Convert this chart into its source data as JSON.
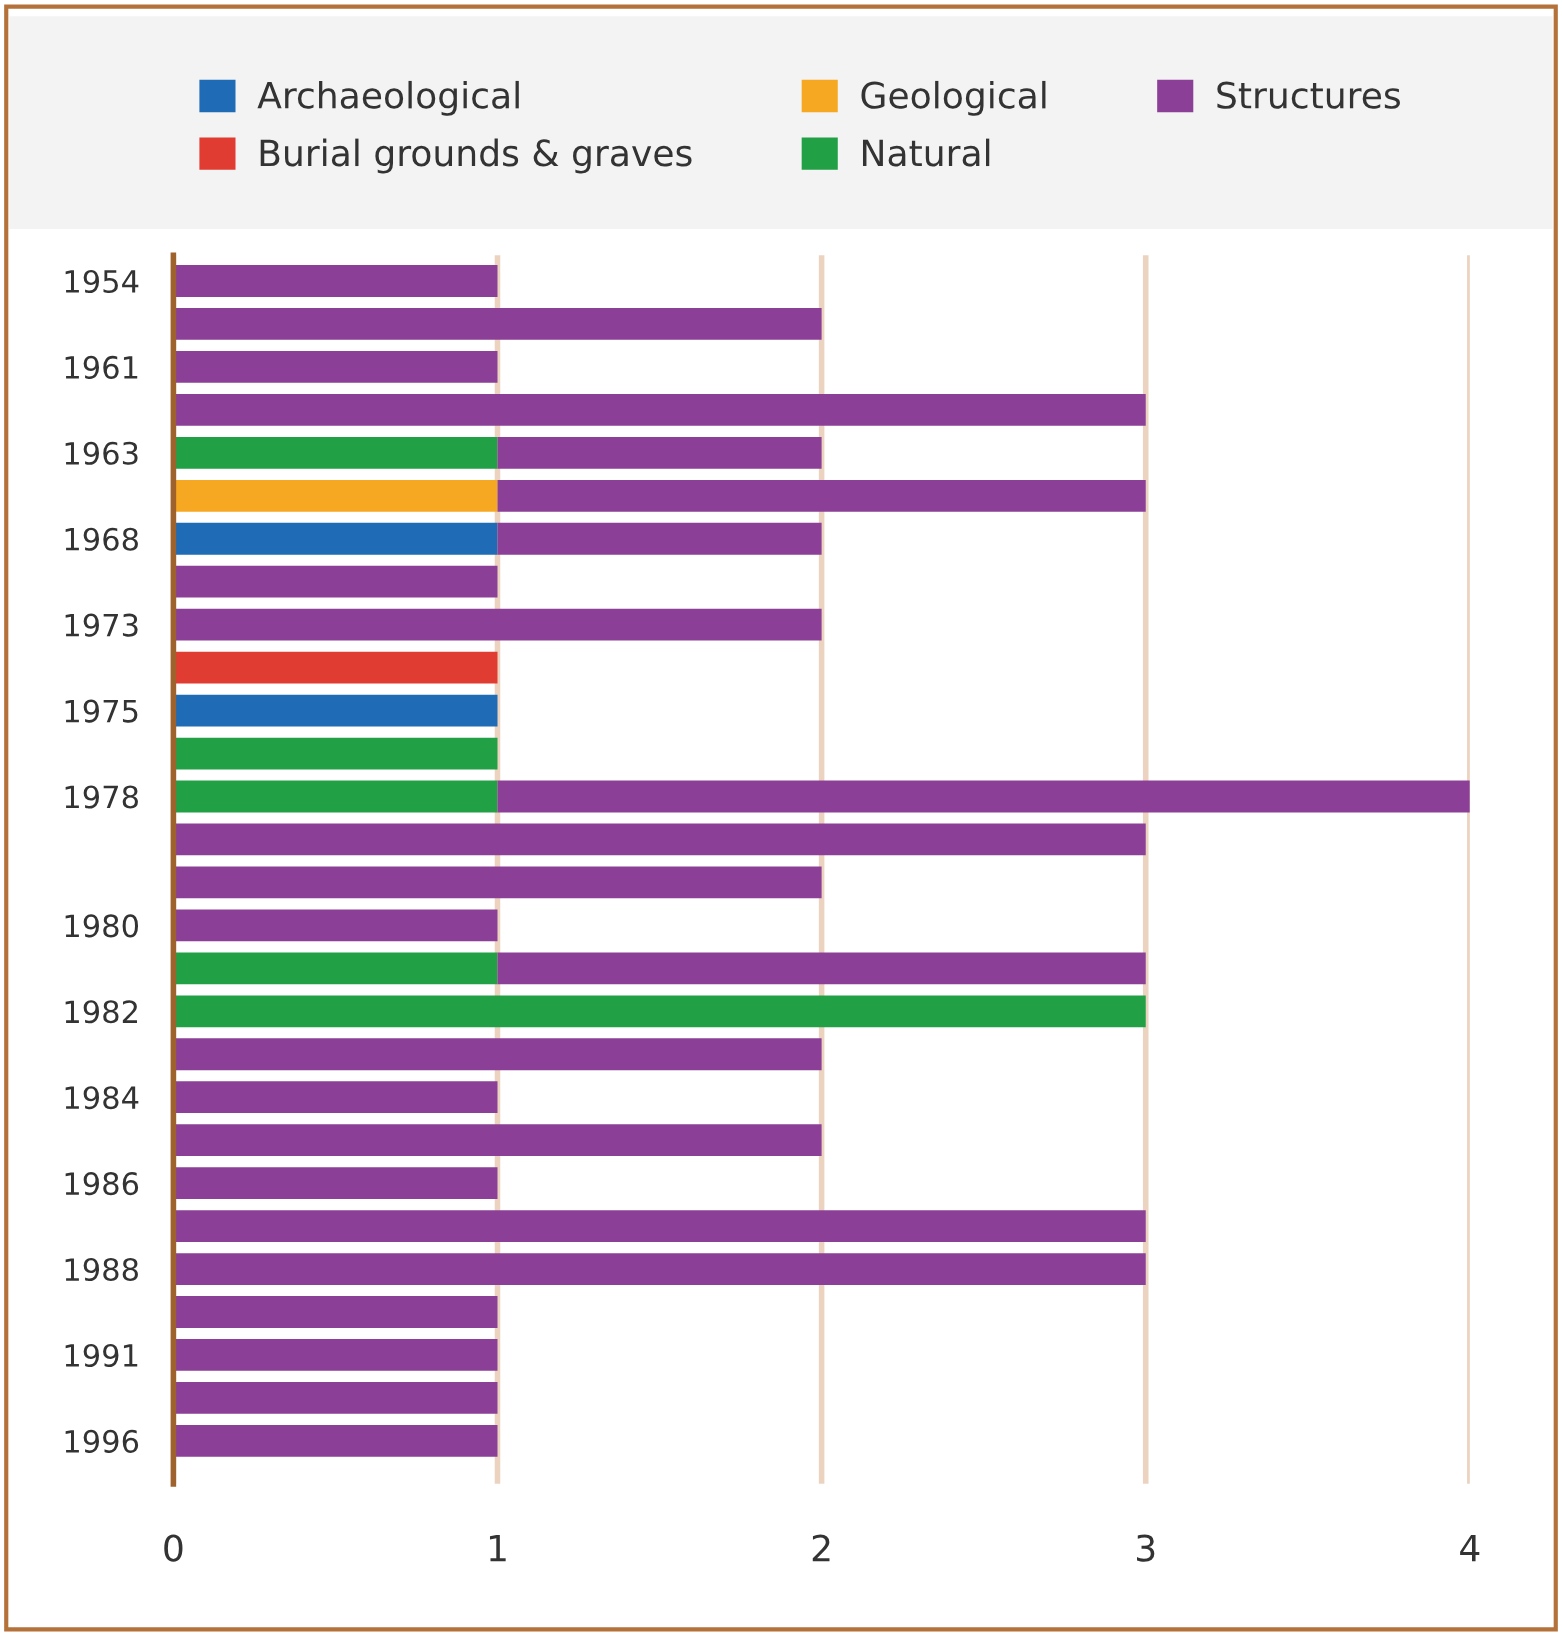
{
  "chart_data": {
    "type": "bar",
    "orientation": "horizontal",
    "stacked": true,
    "categories": [
      "1954",
      null,
      "1961",
      null,
      "1963",
      null,
      "1968",
      null,
      "1973",
      null,
      "1975",
      null,
      "1978",
      null,
      null,
      "1980",
      null,
      "1982",
      null,
      "1984",
      null,
      "1986",
      null,
      "1988",
      null,
      "1991",
      null,
      "1996"
    ],
    "series": [
      {
        "name": "Archaeological",
        "color": "#1f6bb5",
        "values": [
          null,
          null,
          null,
          null,
          null,
          null,
          1,
          null,
          null,
          null,
          1,
          null,
          null,
          null,
          null,
          null,
          null,
          null,
          null,
          null,
          null,
          null,
          null,
          null,
          null,
          null,
          null,
          null
        ]
      },
      {
        "name": "Burial grounds & graves",
        "color": "#e03c31",
        "values": [
          null,
          null,
          null,
          null,
          null,
          null,
          null,
          null,
          null,
          1,
          null,
          null,
          null,
          null,
          null,
          null,
          null,
          null,
          null,
          null,
          null,
          null,
          null,
          null,
          null,
          null,
          null,
          null
        ]
      },
      {
        "name": "Geological",
        "color": "#f7a823",
        "values": [
          null,
          null,
          null,
          null,
          null,
          1,
          null,
          null,
          null,
          null,
          null,
          null,
          null,
          null,
          null,
          null,
          null,
          null,
          null,
          null,
          null,
          null,
          null,
          null,
          null,
          null,
          null,
          null
        ]
      },
      {
        "name": "Natural",
        "color": "#21a045",
        "values": [
          null,
          null,
          null,
          null,
          1,
          null,
          null,
          null,
          null,
          null,
          null,
          1,
          1,
          null,
          null,
          null,
          1,
          3,
          null,
          null,
          null,
          null,
          null,
          null,
          null,
          null,
          null,
          null
        ]
      },
      {
        "name": "Structures",
        "color": "#8b3f96",
        "values": [
          1,
          2,
          1,
          3,
          1,
          2,
          1,
          1,
          2,
          null,
          null,
          null,
          3,
          3,
          2,
          1,
          2,
          null,
          2,
          1,
          2,
          1,
          3,
          3,
          1,
          1,
          1,
          1
        ]
      }
    ],
    "xlim": [
      0,
      4
    ],
    "xticks": [
      0,
      1,
      2,
      3,
      4
    ],
    "grid": "x",
    "legend": "top"
  }
}
